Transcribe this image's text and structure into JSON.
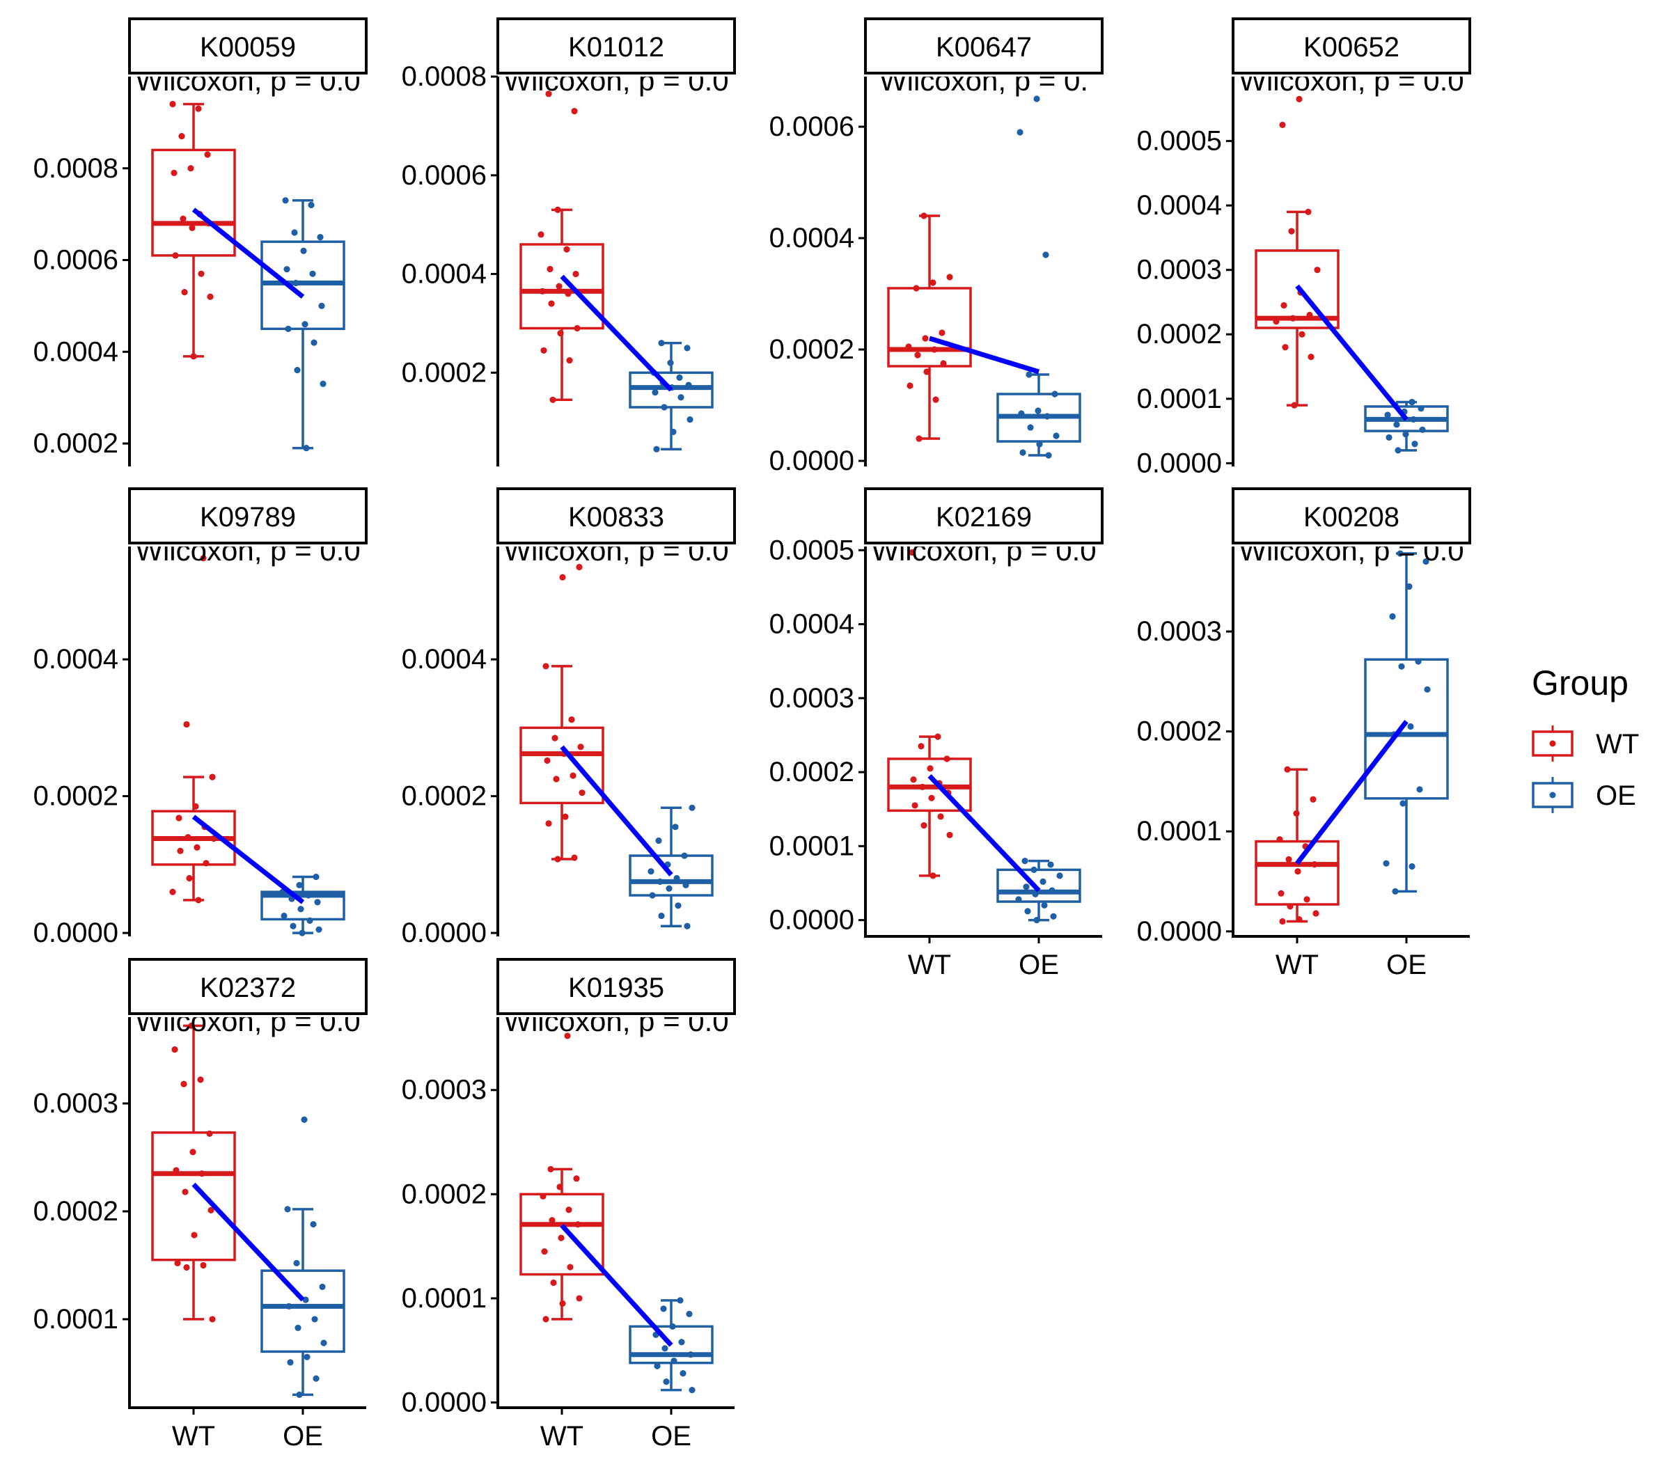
{
  "chart_data": {
    "type": "box",
    "facet_layout": "4 columns x 3 rows",
    "legend": {
      "title": "Group",
      "position": "right",
      "entries": [
        {
          "label": "WT",
          "color": "#D7191C"
        },
        {
          "label": "OE",
          "color": "#1F5FA6"
        }
      ]
    },
    "colors": {
      "WT": "#D7191C",
      "OE": "#1F5FA6",
      "trend": "#0000FF"
    },
    "x_categories": [
      "WT",
      "OE"
    ],
    "panels": [
      {
        "id": "K00059",
        "annotation": "Wilcoxon, p = 0.0",
        "ylim": [
          0.00015,
          0.001
        ],
        "ticks": [
          {
            "v": 0.0002,
            "label": "0.0002"
          },
          {
            "v": 0.0004,
            "label": "0.0004"
          },
          {
            "v": 0.0006,
            "label": "0.0006"
          },
          {
            "v": 0.0008,
            "label": "0.0008"
          }
        ],
        "show_x_labels": false,
        "groups": [
          {
            "name": "WT",
            "lower": 0.00039,
            "q1": 0.00061,
            "median": 0.00068,
            "q3": 0.00084,
            "upper": 0.00094,
            "mean": 0.00071,
            "points": [
              0.00094,
              0.00093,
              0.00087,
              0.00083,
              0.0008,
              0.00079,
              0.0007,
              0.00069,
              0.00068,
              0.00067,
              0.00061,
              0.00057,
              0.00053,
              0.00052,
              0.00039
            ]
          },
          {
            "name": "OE",
            "lower": 0.00019,
            "q1": 0.00045,
            "median": 0.00055,
            "q3": 0.00064,
            "upper": 0.00073,
            "mean": 0.00052,
            "points": [
              0.00073,
              0.00072,
              0.00066,
              0.00065,
              0.00062,
              0.00058,
              0.00057,
              0.00055,
              0.0005,
              0.00046,
              0.00045,
              0.00042,
              0.00036,
              0.00033,
              0.00019
            ]
          }
        ]
      },
      {
        "id": "K01012",
        "annotation": "Wilcoxon, p = 0.0",
        "ylim": [
          1e-05,
          0.0008
        ],
        "ticks": [
          {
            "v": 0.0002,
            "label": "0.0002"
          },
          {
            "v": 0.0004,
            "label": "0.0004"
          },
          {
            "v": 0.0006,
            "label": "0.0006"
          },
          {
            "v": 0.0008,
            "label": "0.0008"
          }
        ],
        "show_x_labels": false,
        "groups": [
          {
            "name": "WT",
            "lower": 0.000145,
            "q1": 0.00029,
            "median": 0.000365,
            "q3": 0.00046,
            "upper": 0.00053,
            "mean": 0.000395,
            "points": [
              0.000765,
              0.00073,
              0.00053,
              0.00048,
              0.00045,
              0.00041,
              0.0004,
              0.000375,
              0.000365,
              0.00036,
              0.00034,
              0.00029,
              0.00028,
              0.000245,
              0.000225,
              0.000145
            ]
          },
          {
            "name": "OE",
            "lower": 4.5e-05,
            "q1": 0.00013,
            "median": 0.00017,
            "q3": 0.0002,
            "upper": 0.00026,
            "mean": 0.000165,
            "points": [
              0.00026,
              0.00025,
              0.00022,
              0.0002,
              0.00019,
              0.00018,
              0.000175,
              0.00017,
              0.00016,
              0.00015,
              0.00013,
              0.000105,
              8e-05,
              4.5e-05
            ]
          }
        ]
      },
      {
        "id": "K00647",
        "annotation": "Wilcoxon, p = 0.",
        "ylim": [
          -1e-05,
          0.00069
        ],
        "ticks": [
          {
            "v": 0.0,
            "label": "0.0000"
          },
          {
            "v": 0.0002,
            "label": "0.0002"
          },
          {
            "v": 0.0004,
            "label": "0.0004"
          },
          {
            "v": 0.0006,
            "label": "0.0006"
          }
        ],
        "show_x_labels": false,
        "groups": [
          {
            "name": "WT",
            "lower": 4e-05,
            "q1": 0.00017,
            "median": 0.0002,
            "q3": 0.00031,
            "upper": 0.00044,
            "mean": 0.00022,
            "points": [
              0.00044,
              0.00033,
              0.00032,
              0.00031,
              0.00023,
              0.00022,
              0.000205,
              0.0002,
              0.00019,
              0.000175,
              0.00016,
              0.000135,
              0.00011,
              4e-05
            ]
          },
          {
            "name": "OE",
            "lower": 1e-05,
            "q1": 3.5e-05,
            "median": 8e-05,
            "q3": 0.00012,
            "upper": 0.000155,
            "mean": 0.00016,
            "points": [
              0.00065,
              0.00059,
              0.00037,
              0.000155,
              0.00012,
              9e-05,
              8.5e-05,
              8e-05,
              6e-05,
              4.5e-05,
              3e-05,
              1.5e-05,
              1e-05
            ]
          }
        ]
      },
      {
        "id": "K00652",
        "annotation": "Wilcoxon, p = 0.0",
        "ylim": [
          -5e-06,
          0.0006
        ],
        "ticks": [
          {
            "v": 0.0,
            "label": "0.0000"
          },
          {
            "v": 0.0001,
            "label": "0.0001"
          },
          {
            "v": 0.0002,
            "label": "0.0002"
          },
          {
            "v": 0.0003,
            "label": "0.0003"
          },
          {
            "v": 0.0004,
            "label": "0.0004"
          },
          {
            "v": 0.0005,
            "label": "0.0005"
          }
        ],
        "show_x_labels": false,
        "groups": [
          {
            "name": "WT",
            "lower": 9e-05,
            "q1": 0.00021,
            "median": 0.000225,
            "q3": 0.00033,
            "upper": 0.00039,
            "mean": 0.000275,
            "points": [
              0.000565,
              0.000525,
              0.00039,
              0.00036,
              0.0003,
              0.000265,
              0.000245,
              0.00023,
              0.000225,
              0.00022,
              0.0002,
              0.00018,
              0.000165,
              9e-05
            ]
          },
          {
            "name": "OE",
            "lower": 2e-05,
            "q1": 5e-05,
            "median": 6.8e-05,
            "q3": 8.8e-05,
            "upper": 9.5e-05,
            "mean": 6.8e-05,
            "points": [
              9.5e-05,
              9e-05,
              8.5e-05,
              8e-05,
              7.5e-05,
              6.8e-05,
              6e-05,
              5.2e-05,
              4.5e-05,
              4e-05,
              3e-05,
              2e-05
            ]
          }
        ]
      },
      {
        "id": "K09789",
        "annotation": "Wilcoxon, p = 0.0",
        "ylim": [
          -5e-06,
          0.000565
        ],
        "ticks": [
          {
            "v": 0.0,
            "label": "0.0000"
          },
          {
            "v": 0.0002,
            "label": "0.0002"
          },
          {
            "v": 0.0004,
            "label": "0.0004"
          }
        ],
        "show_x_labels": false,
        "groups": [
          {
            "name": "WT",
            "lower": 4.8e-05,
            "q1": 0.0001,
            "median": 0.000138,
            "q3": 0.000178,
            "upper": 0.000228,
            "mean": 0.00017,
            "points": [
              0.000548,
              0.000305,
              0.000228,
              0.000185,
              0.000168,
              0.000155,
              0.00014,
              0.000138,
              0.000125,
              0.00012,
              0.000102,
              8e-05,
              6e-05,
              4.8e-05
            ]
          },
          {
            "name": "OE",
            "lower": 0.0,
            "q1": 2e-05,
            "median": 5.5e-05,
            "q3": 6e-05,
            "upper": 8.2e-05,
            "mean": 4.5e-05,
            "points": [
              8.2e-05,
              7e-05,
              6e-05,
              5.5e-05,
              5e-05,
              4.5e-05,
              3.5e-05,
              2.5e-05,
              1.8e-05,
              1e-05,
              5e-06,
              0.0
            ]
          }
        ]
      },
      {
        "id": "K00833",
        "annotation": "Wilcoxon, p = 0.0",
        "ylim": [
          -5e-06,
          0.000565
        ],
        "ticks": [
          {
            "v": 0.0,
            "label": "0.0000"
          },
          {
            "v": 0.0002,
            "label": "0.0002"
          },
          {
            "v": 0.0004,
            "label": "0.0004"
          }
        ],
        "show_x_labels": false,
        "groups": [
          {
            "name": "WT",
            "lower": 0.000108,
            "q1": 0.00019,
            "median": 0.000262,
            "q3": 0.0003,
            "upper": 0.00039,
            "mean": 0.000272,
            "points": [
              0.000535,
              0.00052,
              0.00039,
              0.000312,
              0.000285,
              0.000272,
              0.000262,
              0.000252,
              0.00023,
              0.000225,
              0.000205,
              0.00017,
              0.00016,
              0.00011,
              0.000108
            ]
          },
          {
            "name": "OE",
            "lower": 1e-05,
            "q1": 5.5e-05,
            "median": 7.5e-05,
            "q3": 0.000113,
            "upper": 0.000183,
            "mean": 8.5e-05,
            "points": [
              0.000183,
              0.000155,
              0.000135,
              0.000113,
              0.0001,
              9e-05,
              8e-05,
              7.5e-05,
              7e-05,
              6.5e-05,
              5.5e-05,
              4e-05,
              2.5e-05,
              1e-05
            ]
          }
        ]
      },
      {
        "id": "K02169",
        "annotation": "Wilcoxon, p = 0.0",
        "ylim": [
          -2.2e-05,
          0.000505
        ],
        "ticks": [
          {
            "v": 0.0,
            "label": "0.0000"
          },
          {
            "v": 0.0001,
            "label": "0.0001"
          },
          {
            "v": 0.0002,
            "label": "0.0002"
          },
          {
            "v": 0.0003,
            "label": "0.0003"
          },
          {
            "v": 0.0004,
            "label": "0.0004"
          },
          {
            "v": 0.0005,
            "label": "0.0005"
          }
        ],
        "show_x_labels": true,
        "groups": [
          {
            "name": "WT",
            "lower": 6e-05,
            "q1": 0.000148,
            "median": 0.00018,
            "q3": 0.000218,
            "upper": 0.000248,
            "mean": 0.000195,
            "points": [
              0.000497,
              0.000248,
              0.000235,
              0.000218,
              0.000205,
              0.00019,
              0.000185,
              0.00018,
              0.000172,
              0.000165,
              0.000155,
              0.00014,
              0.000128,
              0.000115,
              6e-05
            ]
          },
          {
            "name": "OE",
            "lower": 0.0,
            "q1": 2.5e-05,
            "median": 3.8e-05,
            "q3": 6.8e-05,
            "upper": 8e-05,
            "mean": 4e-05,
            "points": [
              8e-05,
              7.5e-05,
              6.8e-05,
              6e-05,
              5.2e-05,
              4.5e-05,
              4e-05,
              3.5e-05,
              2.8e-05,
              2e-05,
              1.2e-05,
              5e-06,
              0.0
            ]
          }
        ]
      },
      {
        "id": "K00208",
        "annotation": "Wilcoxon, p = 0.0",
        "ylim": [
          -5e-06,
          0.000385
        ],
        "ticks": [
          {
            "v": 0.0,
            "label": "0.0000"
          },
          {
            "v": 0.0001,
            "label": "0.0001"
          },
          {
            "v": 0.0002,
            "label": "0.0002"
          },
          {
            "v": 0.0003,
            "label": "0.0003"
          }
        ],
        "show_x_labels": true,
        "groups": [
          {
            "name": "WT",
            "lower": 1e-05,
            "q1": 2.7e-05,
            "median": 6.7e-05,
            "q3": 9e-05,
            "upper": 0.000162,
            "mean": 6.8e-05,
            "points": [
              0.000162,
              0.000132,
              0.000118,
              9.2e-05,
              8.5e-05,
              7.2e-05,
              6.7e-05,
              6e-05,
              3.8e-05,
              3.2e-05,
              2.5e-05,
              1.8e-05,
              1.2e-05,
              1e-05
            ]
          },
          {
            "name": "OE",
            "lower": 4e-05,
            "q1": 0.000133,
            "median": 0.000197,
            "q3": 0.000272,
            "upper": 0.000378,
            "mean": 0.00021,
            "points": [
              0.000378,
              0.00037,
              0.000345,
              0.000315,
              0.00027,
              0.000265,
              0.000242,
              0.000205,
              0.000197,
              0.000142,
              0.000128,
              6.8e-05,
              6.5e-05,
              4e-05
            ]
          }
        ]
      },
      {
        "id": "K02372",
        "annotation": "Wilcoxon, p = 0.0",
        "ylim": [
          1.8e-05,
          0.00038
        ],
        "ticks": [
          {
            "v": 0.0001,
            "label": "0.0001"
          },
          {
            "v": 0.0002,
            "label": "0.0002"
          },
          {
            "v": 0.0003,
            "label": "0.0003"
          }
        ],
        "show_x_labels": true,
        "groups": [
          {
            "name": "WT",
            "lower": 0.0001,
            "q1": 0.000155,
            "median": 0.000235,
            "q3": 0.000273,
            "upper": 0.000372,
            "mean": 0.000225,
            "points": [
              0.000372,
              0.00035,
              0.000322,
              0.000318,
              0.000272,
              0.000255,
              0.000238,
              0.000235,
              0.000218,
              0.000201,
              0.000178,
              0.000152,
              0.00015,
              0.000148,
              0.0001
            ]
          },
          {
            "name": "OE",
            "lower": 3e-05,
            "q1": 7e-05,
            "median": 0.000112,
            "q3": 0.000145,
            "upper": 0.000202,
            "mean": 0.000118,
            "points": [
              0.000285,
              0.000202,
              0.000188,
              0.000152,
              0.00013,
              0.000118,
              0.000112,
              0.0001,
              9.2e-05,
              7.8e-05,
              6.5e-05,
              6e-05,
              4.5e-05,
              3e-05
            ]
          }
        ]
      },
      {
        "id": "K01935",
        "annotation": "Wilcoxon, p = 0.0",
        "ylim": [
          -5e-06,
          0.00037
        ],
        "ticks": [
          {
            "v": 0.0,
            "label": "0.0000"
          },
          {
            "v": 0.0001,
            "label": "0.0001"
          },
          {
            "v": 0.0002,
            "label": "0.0002"
          },
          {
            "v": 0.0003,
            "label": "0.0003"
          }
        ],
        "show_x_labels": true,
        "groups": [
          {
            "name": "WT",
            "lower": 8e-05,
            "q1": 0.000123,
            "median": 0.000171,
            "q3": 0.0002,
            "upper": 0.000224,
            "mean": 0.00017,
            "points": [
              0.000352,
              0.000224,
              0.000215,
              0.000207,
              0.000198,
              0.000185,
              0.000175,
              0.000171,
              0.000158,
              0.000145,
              0.00013,
              0.000115,
              0.0001,
              9.5e-05,
              8e-05
            ]
          },
          {
            "name": "OE",
            "lower": 1.2e-05,
            "q1": 3.8e-05,
            "median": 4.6e-05,
            "q3": 7.3e-05,
            "upper": 9.8e-05,
            "mean": 5.5e-05,
            "points": [
              9.8e-05,
              9e-05,
              8.5e-05,
              7.3e-05,
              6.5e-05,
              5.8e-05,
              5.2e-05,
              4.6e-05,
              4e-05,
              3.5e-05,
              2.8e-05,
              2e-05,
              1.2e-05
            ]
          }
        ]
      }
    ]
  }
}
